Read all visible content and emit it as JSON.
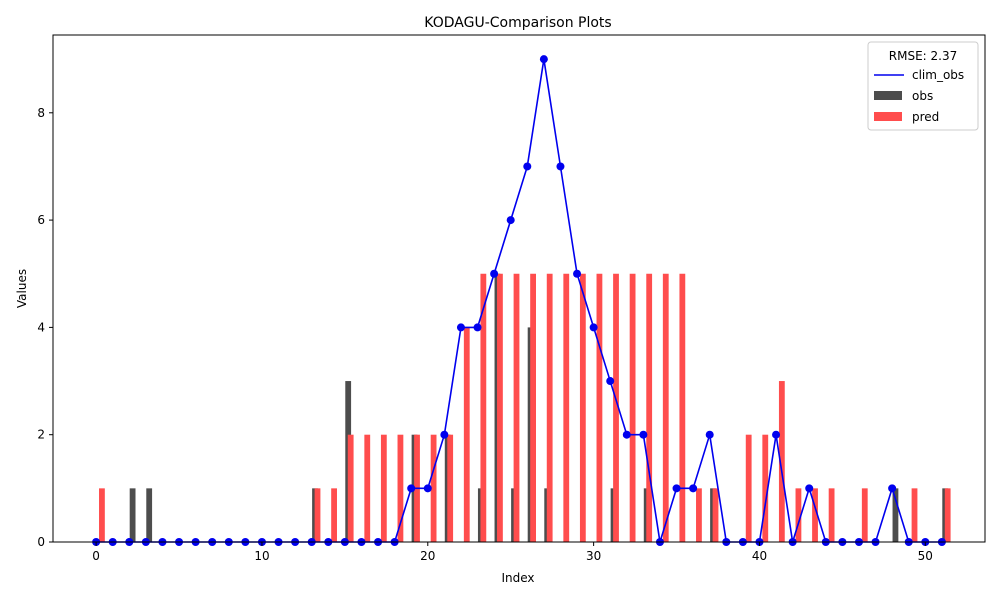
{
  "chart_data": {
    "type": "bar",
    "title": "KODAGU-Comparison Plots",
    "xlabel": "Index",
    "ylabel": "Values",
    "xlim": [
      -2.6,
      53.6
    ],
    "ylim": [
      0,
      9.45
    ],
    "xticks": [
      0,
      10,
      20,
      30,
      40,
      50
    ],
    "yticks": [
      0,
      2,
      4,
      6,
      8
    ],
    "legend": {
      "position": "top-right",
      "title": "RMSE: 2.37",
      "entries": [
        "clim_obs",
        "obs",
        "pred"
      ]
    },
    "series": [
      {
        "name": "obs",
        "kind": "bar",
        "color": "#4d4d4d",
        "values": [
          0,
          0,
          1,
          1,
          0,
          0,
          0,
          0,
          0,
          0,
          0,
          0,
          0,
          1,
          0,
          3,
          0,
          0,
          0,
          2,
          0,
          2,
          0,
          1,
          5,
          1,
          4,
          1,
          0,
          0,
          0,
          1,
          0,
          1,
          0,
          0,
          0,
          1,
          0,
          0,
          0,
          0,
          0,
          0,
          0,
          0,
          0,
          0,
          1,
          0,
          0,
          1
        ]
      },
      {
        "name": "pred",
        "kind": "bar",
        "color": "#ff4d4d",
        "values": [
          1,
          0,
          0,
          0,
          0,
          0,
          0,
          0,
          0,
          0,
          0,
          0,
          0,
          1,
          1,
          2,
          2,
          2,
          2,
          2,
          2,
          2,
          4,
          5,
          5,
          5,
          5,
          5,
          5,
          5,
          5,
          5,
          5,
          5,
          5,
          5,
          1,
          1,
          0,
          2,
          2,
          3,
          1,
          1,
          1,
          0,
          1,
          0,
          0,
          1,
          0,
          1
        ]
      },
      {
        "name": "clim_obs",
        "kind": "line",
        "color": "#0000ee",
        "values": [
          0,
          0,
          0,
          0,
          0,
          0,
          0,
          0,
          0,
          0,
          0,
          0,
          0,
          0,
          0,
          0,
          0,
          0,
          0,
          1,
          1,
          2,
          4,
          4,
          5,
          6,
          7,
          9,
          7,
          5,
          4,
          3,
          2,
          2,
          0,
          1,
          1,
          2,
          0,
          0,
          0,
          2,
          0,
          1,
          0,
          0,
          0,
          0,
          1,
          0,
          0,
          0
        ]
      }
    ]
  }
}
